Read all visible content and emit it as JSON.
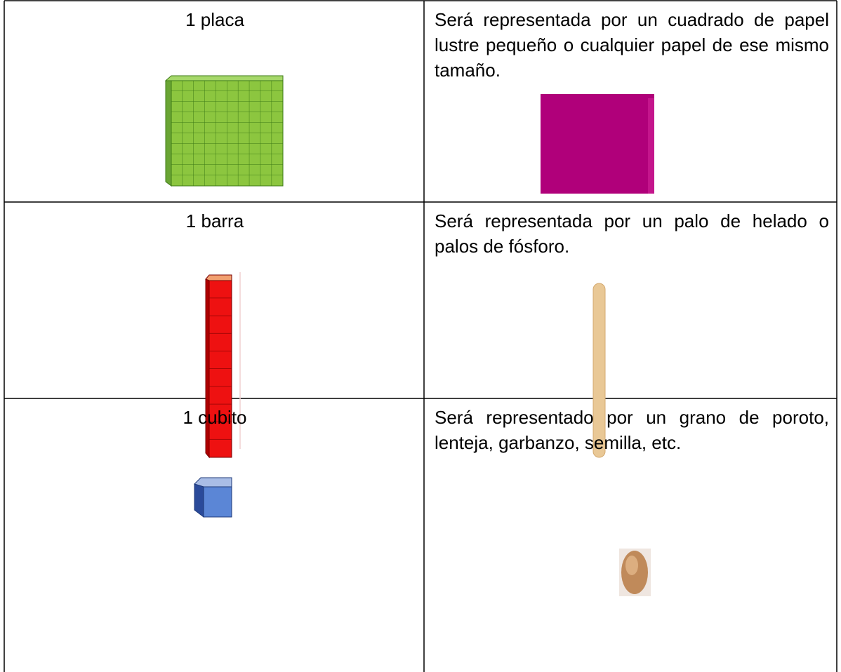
{
  "table": {
    "rows": [
      [
        "1 placa",
        "Será representada por un cuadrado de papel lustre pequeño o cualquier papel de ese mismo tamaño."
      ],
      [
        "1 barra",
        "Será representada por un palo de helado o palos de fósforo."
      ],
      [
        "1 cubito",
        "Será representado por un grano de poroto, lenteja, garbanzo, semilla, etc."
      ]
    ]
  }
}
